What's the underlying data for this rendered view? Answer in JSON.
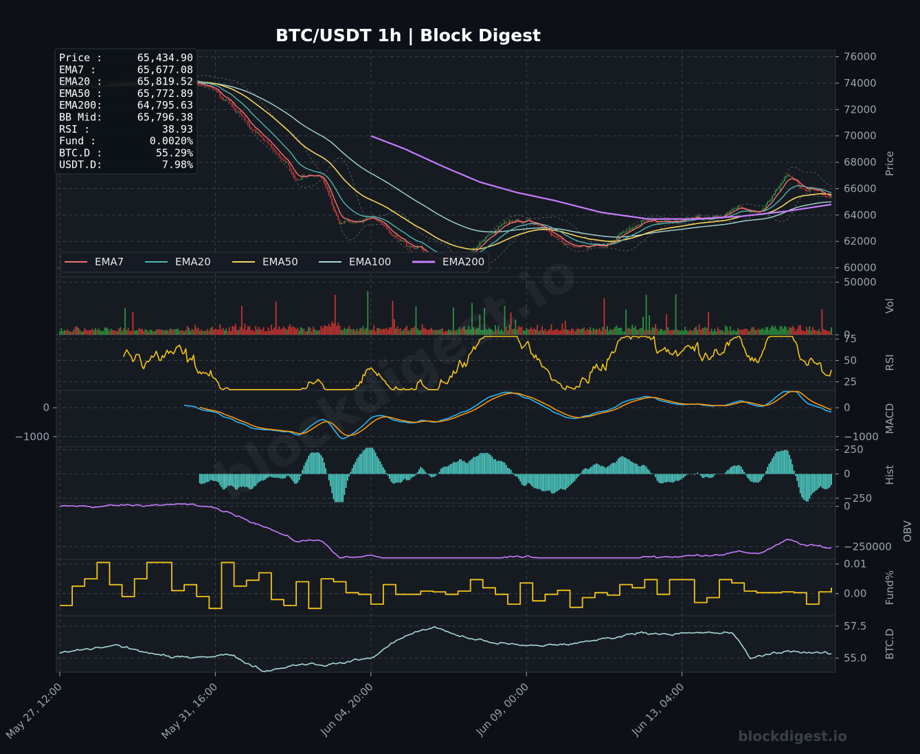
{
  "title": "BTC/USDT  1h  |  Block Digest",
  "info_box": [
    {
      "label": "Price :",
      "value": "65,434.90"
    },
    {
      "label": "EMA7  :",
      "value": "65,677.08"
    },
    {
      "label": "EMA20 :",
      "value": "65,819.52"
    },
    {
      "label": "EMA50 :",
      "value": "65,772.89"
    },
    {
      "label": "EMA200:",
      "value": "64,795.63"
    },
    {
      "label": "BB Mid:",
      "value": "65,796.38"
    },
    {
      "label": "RSI   :",
      "value": "38.93"
    },
    {
      "label": "Fund  :",
      "value": "0.0020%"
    },
    {
      "label": "BTC.D :",
      "value": "55.29%"
    },
    {
      "label": "USDT.D:",
      "value": "7.98%"
    }
  ],
  "watermark": "blockdigest.io",
  "footer_watermark": "blockdigest.io",
  "colors": {
    "background": "#0d1117",
    "panel": "#161b22",
    "grid": "#2d333b",
    "up": "#2ea043",
    "down": "#da3633",
    "ema7": "#f47174",
    "ema20": "#4fb8b4",
    "ema50": "#f6d55c",
    "ema100": "#a8d8d8",
    "ema200": "#c77dff",
    "rsi": "#f5c518",
    "macd": "#29b6f6",
    "signal": "#ff9800",
    "hist": "#4ecdc4",
    "obv": "#c77dff",
    "funding": "#f5c518",
    "btcd": "#a8d8d8"
  },
  "chart_data": {
    "type": "line",
    "x_tick_labels": [
      "May 27, 12:00",
      "May 31, 16:00",
      "Jun 04, 20:00",
      "Jun 09, 00:00",
      "Jun 13, 04:00"
    ],
    "x_ticks": [
      "2024-05-27 12:00",
      "2024-05-31 16:00",
      "2024-06-04 20:00",
      "2024-06-09 00:00",
      "2024-06-13 04:00"
    ],
    "x_range": [
      "2024-05-27 12:00",
      "2024-06-17 04:00"
    ],
    "panels": [
      {
        "name": "price",
        "ylabel": "Price",
        "ylim": [
          59300,
          76500
        ],
        "y_ticks": [
          60000,
          62000,
          64000,
          66000,
          68000,
          70000,
          72000,
          74000,
          76000
        ],
        "y_tick_labels": [
          "60000",
          "62000",
          "64000",
          "66000",
          "68000",
          "70000",
          "72000",
          "74000",
          "76000"
        ],
        "legend": [
          "EMA7",
          "EMA20",
          "EMA50",
          "EMA100",
          "EMA200"
        ],
        "legend_position": "lower-left",
        "price_keypoints": {
          "x": [
            "2024-05-27 12:00",
            "2024-05-29 00:00",
            "2024-05-30 12:00",
            "2024-05-31 12:00",
            "2024-06-01 06:00",
            "2024-06-02 00:00",
            "2024-06-02 20:00",
            "2024-06-03 12:00",
            "2024-06-04 00:00",
            "2024-06-04 20:00",
            "2024-06-05 18:00",
            "2024-06-06 12:00",
            "2024-06-07 06:00",
            "2024-06-08 00:00",
            "2024-06-08 18:00",
            "2024-06-09 12:00",
            "2024-06-10 06:00",
            "2024-06-11 00:00",
            "2024-06-12 06:00",
            "2024-06-13 12:00",
            "2024-06-14 12:00",
            "2024-06-15 06:00",
            "2024-06-16 00:00",
            "2024-06-16 12:00",
            "2024-06-17 04:00"
          ],
          "y": [
            73700,
            73900,
            74200,
            73800,
            71700,
            70000,
            66700,
            67200,
            63300,
            63600,
            61700,
            60800,
            60900,
            62600,
            63900,
            62800,
            61500,
            61700,
            63600,
            63700,
            64400,
            64300,
            66800,
            65800,
            65400
          ]
        },
        "ema200_keypoints": {
          "x": [
            "2024-06-04 20:00",
            "2024-06-05 18:00",
            "2024-06-06 18:00",
            "2024-06-07 18:00",
            "2024-06-08 18:00",
            "2024-06-09 18:00",
            "2024-06-11 00:00",
            "2024-06-12 06:00",
            "2024-06-13 12:00",
            "2024-06-14 18:00",
            "2024-06-16 00:00",
            "2024-06-17 04:00"
          ],
          "y": [
            70000,
            69000,
            67700,
            66500,
            65700,
            65100,
            64200,
            63700,
            63700,
            63900,
            64300,
            64800
          ]
        }
      },
      {
        "name": "volume",
        "ylabel": "Vol",
        "ylim": [
          0,
          55000
        ],
        "y_ticks": [
          0,
          50000
        ],
        "y_tick_labels": [
          "0",
          "50000"
        ],
        "max_volume": 53000
      },
      {
        "name": "rsi",
        "ylabel": "RSI",
        "ylim": [
          15,
          80
        ],
        "y_ticks": [
          25,
          50,
          75
        ],
        "y_tick_labels": [
          "25",
          "50",
          "75"
        ],
        "last_value": 38.93
      },
      {
        "name": "macd",
        "ylabel": "MACD",
        "ylim": [
          -1350,
          600
        ],
        "y_ticks": [
          -1000,
          0
        ],
        "left_tick_labels": [
          "−1000",
          "0"
        ],
        "right_tick_labels": [
          "−1000",
          "0"
        ]
      },
      {
        "name": "hist",
        "ylabel": "Hist",
        "ylim": [
          -300,
          280
        ],
        "y_ticks": [
          -250,
          0,
          250
        ],
        "y_tick_labels": [
          "−250",
          "0",
          "250"
        ]
      },
      {
        "name": "obv",
        "ylabel": "OBV",
        "ylim": [
          -330000,
          20000
        ],
        "y_ticks": [
          -250000,
          0
        ],
        "y_tick_labels": [
          "−250000",
          "0"
        ]
      },
      {
        "name": "funding",
        "ylabel": "Fund%",
        "ylim": [
          -0.0075,
          0.0115
        ],
        "y_ticks": [
          0.0,
          0.01
        ],
        "y_tick_labels": [
          "0.00",
          "0.01"
        ],
        "last_value": 0.002
      },
      {
        "name": "btcd",
        "ylabel": "BTC.D",
        "ylim": [
          53.9,
          58.3
        ],
        "y_ticks": [
          55.0,
          57.5
        ],
        "y_tick_labels": [
          "55.0",
          "57.5"
        ],
        "keypoints": {
          "x": [
            "2024-05-27 12:00",
            "2024-05-29 00:00",
            "2024-05-30 12:00",
            "2024-06-01 00:00",
            "2024-06-02 00:00",
            "2024-06-03 00:00",
            "2024-06-03 18:00",
            "2024-06-04 20:00",
            "2024-06-05 18:00",
            "2024-06-06 12:00",
            "2024-06-07 12:00",
            "2024-06-09 00:00",
            "2024-06-10 12:00",
            "2024-06-12 00:00",
            "2024-06-13 12:00",
            "2024-06-14 12:00",
            "2024-06-15 00:00",
            "2024-06-16 00:00",
            "2024-06-17 04:00"
          ],
          "y": [
            55.4,
            56.0,
            55.0,
            55.3,
            54.0,
            54.6,
            54.5,
            55.0,
            56.8,
            57.4,
            56.5,
            55.9,
            56.2,
            57.0,
            56.9,
            57.0,
            55.0,
            55.6,
            55.29
          ]
        }
      }
    ]
  }
}
